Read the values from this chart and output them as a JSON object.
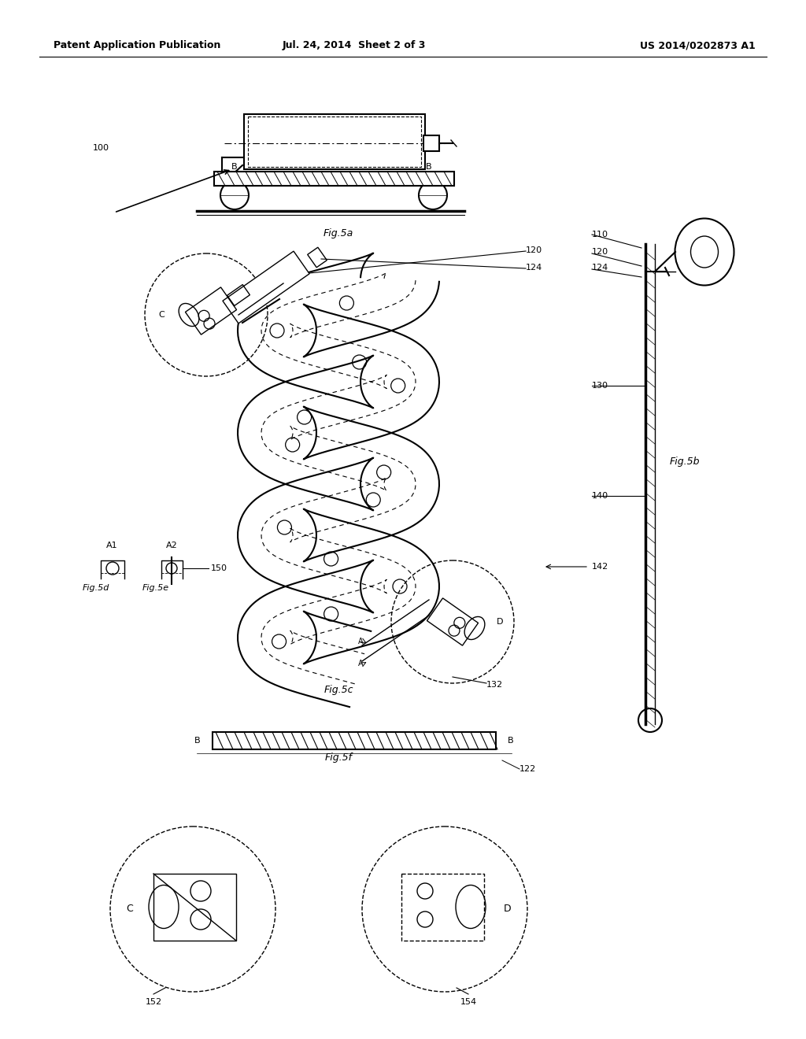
{
  "header_left": "Patent Application Publication",
  "header_mid": "Jul. 24, 2014  Sheet 2 of 3",
  "header_right": "US 2014/0202873 A1",
  "bg_color": "#ffffff",
  "fig_labels": {
    "fig5a": "Fig.5a",
    "fig5b": "Fig.5b",
    "fig5c": "Fig.5c",
    "fig5d": "Fig.5d",
    "fig5e": "Fig.5e",
    "fig5f": "Fig.5f"
  }
}
